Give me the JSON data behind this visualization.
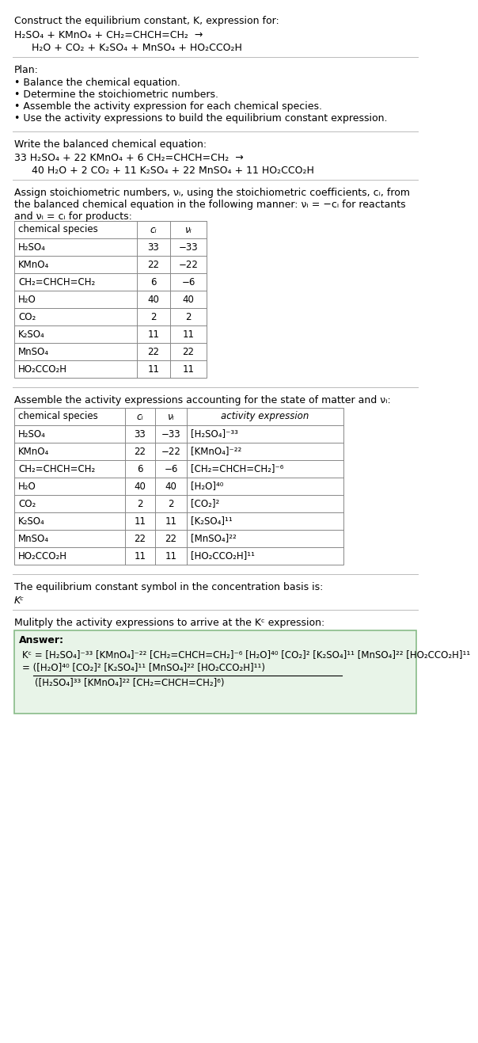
{
  "bg_color": "#ffffff",
  "text_color": "#000000",
  "table_border_color": "#888888",
  "font_size": 9.0,
  "title_line": "Construct the equilibrium constant, K, expression for:",
  "rxn1": "H₂SO₄ + KMnO₄ + CH₂=CHCH=CH₂  →",
  "rxn2": "  H₂O + CO₂ + K₂SO₄ + MnSO₄ + HO₂CCO₂H",
  "plan_title": "Plan:",
  "plan_items": [
    "• Balance the chemical equation.",
    "• Determine the stoichiometric numbers.",
    "• Assemble the activity expression for each chemical species.",
    "• Use the activity expressions to build the equilibrium constant expression."
  ],
  "balanced_label": "Write the balanced chemical equation:",
  "bal1": "33 H₂SO₄ + 22 KMnO₄ + 6 CH₂=CHCH=CH₂  →",
  "bal2": "  40 H₂O + 2 CO₂ + 11 K₂SO₄ + 22 MnSO₄ + 11 HO₂CCO₂H",
  "stoich_text1": "Assign stoichiometric numbers, νᵢ, using the stoichiometric coefficients, cᵢ, from",
  "stoich_text2": "the balanced chemical equation in the following manner: νᵢ = −cᵢ for reactants",
  "stoich_text3": "and νᵢ = cᵢ for products:",
  "table1_headers": [
    "chemical species",
    "cᵢ",
    "νᵢ"
  ],
  "table1_rows": [
    [
      "H₂SO₄",
      "33",
      "−33"
    ],
    [
      "KMnO₄",
      "22",
      "−22"
    ],
    [
      "CH₂=CHCH=CH₂",
      "6",
      "−6"
    ],
    [
      "H₂O",
      "40",
      "40"
    ],
    [
      "CO₂",
      "2",
      "2"
    ],
    [
      "K₂SO₄",
      "11",
      "11"
    ],
    [
      "MnSO₄",
      "22",
      "22"
    ],
    [
      "HO₂CCO₂H",
      "11",
      "11"
    ]
  ],
  "activity_label": "Assemble the activity expressions accounting for the state of matter and νᵢ:",
  "table2_headers": [
    "chemical species",
    "cᵢ",
    "νᵢ",
    "activity expression"
  ],
  "table2_rows": [
    [
      "H₂SO₄",
      "33",
      "−33",
      "[H₂SO₄]⁻³³"
    ],
    [
      "KMnO₄",
      "22",
      "−22",
      "[KMnO₄]⁻²²"
    ],
    [
      "CH₂=CHCH=CH₂",
      "6",
      "−6",
      "[CH₂=CHCH=CH₂]⁻⁶"
    ],
    [
      "H₂O",
      "40",
      "40",
      "[H₂O]⁴⁰"
    ],
    [
      "CO₂",
      "2",
      "2",
      "[CO₂]²"
    ],
    [
      "K₂SO₄",
      "11",
      "11",
      "[K₂SO₄]¹¹"
    ],
    [
      "MnSO₄",
      "22",
      "22",
      "[MnSO₄]²²"
    ],
    [
      "HO₂CCO₂H",
      "11",
      "11",
      "[HO₂CCO₂H]¹¹"
    ]
  ],
  "kc_label": "The equilibrium constant symbol in the concentration basis is:",
  "kc_symbol": "Kᶜ",
  "multiply_label": "Mulitply the activity expressions to arrive at the Kᶜ expression:",
  "answer_label": "Answer:",
  "answer_line1": "Kᶜ = [H₂SO₄]⁻³³ [KMnO₄]⁻²² [CH₂=CHCH=CH₂]⁻⁶ [H₂O]⁴⁰ [CO₂]² [K₂SO₄]¹¹ [MnSO₄]²² [HO₂CCO₂H]¹¹",
  "answer_num": "([H₂O]⁴⁰ [CO₂]² [K₂SO₄]¹¹ [MnSO₄]²² [HO₂CCO₂H]¹¹)",
  "answer_den": "([H₂SO₄]³³ [KMnO₄]²² [CH₂=CHCH=CH₂]⁶)",
  "answer_box_color": "#e8f4e8",
  "answer_border_color": "#88bb88"
}
